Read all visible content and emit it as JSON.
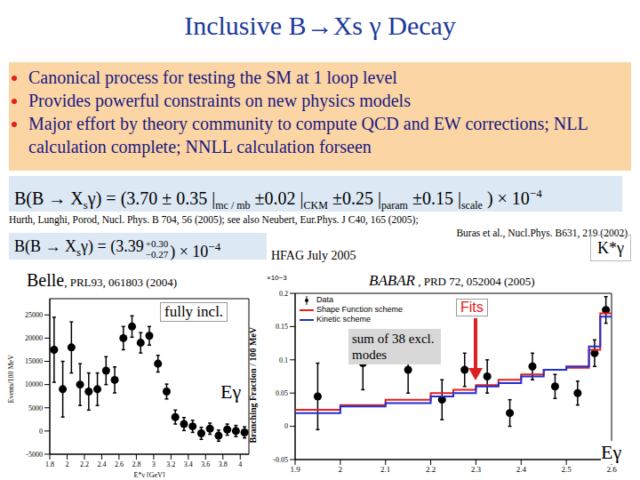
{
  "slide": {
    "title": "Inclusive B→Xs γ Decay",
    "bullets": [
      "Canonical process for testing the SM at 1 loop level",
      "Provides powerful constraints on new physics models",
      "Major effort by theory community to compute QCD and EW corrections; NLL calculation complete; NNLL calculation forseen"
    ],
    "formula1": {
      "lhs": "B(B → X",
      "lhs_sub": "s",
      "lhs_end": "γ) = (3.70",
      "terms": [
        {
          "value": "± 0.35 |",
          "sub": "mc / mb"
        },
        {
          "value": "±0.02 |",
          "sub": "CKM"
        },
        {
          "value": "±0.25 |",
          "sub": "param"
        },
        {
          "value": "±0.15 |",
          "sub": "scale"
        }
      ],
      "suffix": ") × 10",
      "exponent": "−4"
    },
    "references": [
      "Hurth, Lunghi, Porod, Nucl. Phys. B 704, 56 (2005); see also Neubert, Eur.Phys. J C40, 165 (2005);",
      "Buras et al., Nucl.Phys. B631, 219 (2002)"
    ],
    "formula2": {
      "lhs": "B(B → X",
      "lhs_sub": "s",
      "lhs_end": "γ) = (3.39",
      "upper": "+0.30",
      "lower": "−0.27",
      "suffix": ") × 10",
      "exponent": "−4"
    },
    "hfag": "HFAG July 2005",
    "kstar": "K*γ"
  },
  "chart_data": [
    {
      "type": "scatter",
      "title": "Belle",
      "subtitle": "PRL93, 061803 (2004)",
      "xlabel": "E*γ [GeV]",
      "ylabel": "Events/100 MeV",
      "annotations": [
        "fully incl.",
        "Eγ"
      ],
      "xlim": [
        1.8,
        4.1
      ],
      "xticks": [
        1.8,
        2,
        2.2,
        2.4,
        2.6,
        2.8,
        3,
        3.2,
        3.4,
        3.6,
        3.8,
        4
      ],
      "ylim": [
        -5000,
        28500
      ],
      "yticks": [
        -5000,
        0,
        5000,
        10000,
        15000,
        20000,
        25000
      ],
      "color": "#000000",
      "marker": "circle",
      "x": [
        1.85,
        1.95,
        2.05,
        2.15,
        2.25,
        2.35,
        2.45,
        2.55,
        2.65,
        2.75,
        2.85,
        2.95,
        3.05,
        3.15,
        3.25,
        3.35,
        3.45,
        3.55,
        3.65,
        3.75,
        3.85,
        3.95,
        4.05
      ],
      "values": [
        17500,
        9000,
        18000,
        10000,
        8500,
        9000,
        13000,
        11000,
        20000,
        22500,
        19000,
        20500,
        14500,
        8500,
        3000,
        1500,
        1000,
        -500,
        500,
        -1000,
        300,
        0,
        -300
      ],
      "errors": [
        7000,
        6000,
        5500,
        4500,
        4000,
        3500,
        3000,
        2800,
        2500,
        2300,
        2200,
        2000,
        1800,
        1600,
        1500,
        1400,
        1300,
        1300,
        1200,
        1200,
        1200,
        1200,
        1200
      ]
    },
    {
      "type": "scatter",
      "title": "BABAR",
      "subtitle": "PRD 72, 052004 (2005)",
      "ylabel": "Branching Fraction / 100 MeV",
      "annotations": [
        "Fits",
        "sum of 38 excl. modes",
        "Eγ",
        "×10−3"
      ],
      "legend": "upper left",
      "xlim": [
        1.9,
        2.6
      ],
      "xticks": [
        1.9,
        2,
        2.1,
        2.2,
        2.3,
        2.4,
        2.5,
        2.6
      ],
      "ylim": [
        -0.05,
        0.2
      ],
      "yticks": [
        -0.05,
        0,
        0.05,
        0.1,
        0.15,
        0.2
      ],
      "series": [
        {
          "name": "Data",
          "type": "scatter",
          "color": "#000000",
          "marker": "circle",
          "x": [
            1.95,
            2.05,
            2.15,
            2.225,
            2.275,
            2.325,
            2.375,
            2.425,
            2.475,
            2.525,
            2.5625,
            2.5875
          ],
          "values": [
            0.045,
            0.095,
            0.085,
            0.04,
            0.085,
            0.075,
            0.02,
            0.09,
            0.06,
            0.05,
            0.11,
            0.175
          ],
          "errors": [
            0.05,
            0.04,
            0.035,
            0.03,
            0.025,
            0.025,
            0.02,
            0.02,
            0.018,
            0.018,
            0.02,
            0.02
          ]
        },
        {
          "name": "Shape Function scheme",
          "type": "line",
          "line_style": "step",
          "color": "#e02020",
          "bins": [
            1.9,
            2.0,
            2.1,
            2.2,
            2.25,
            2.3,
            2.35,
            2.4,
            2.45,
            2.5,
            2.55,
            2.575,
            2.6
          ],
          "values": [
            0.025,
            0.032,
            0.04,
            0.05,
            0.055,
            0.062,
            0.07,
            0.078,
            0.085,
            0.088,
            0.115,
            0.17
          ]
        },
        {
          "name": "Kinetic scheme",
          "type": "line",
          "line_style": "step",
          "color": "#2030d0",
          "bins": [
            1.9,
            2.0,
            2.1,
            2.2,
            2.25,
            2.3,
            2.35,
            2.4,
            2.45,
            2.5,
            2.55,
            2.575,
            2.6
          ],
          "values": [
            0.02,
            0.03,
            0.035,
            0.045,
            0.05,
            0.06,
            0.065,
            0.075,
            0.085,
            0.09,
            0.12,
            0.165
          ]
        }
      ]
    }
  ]
}
